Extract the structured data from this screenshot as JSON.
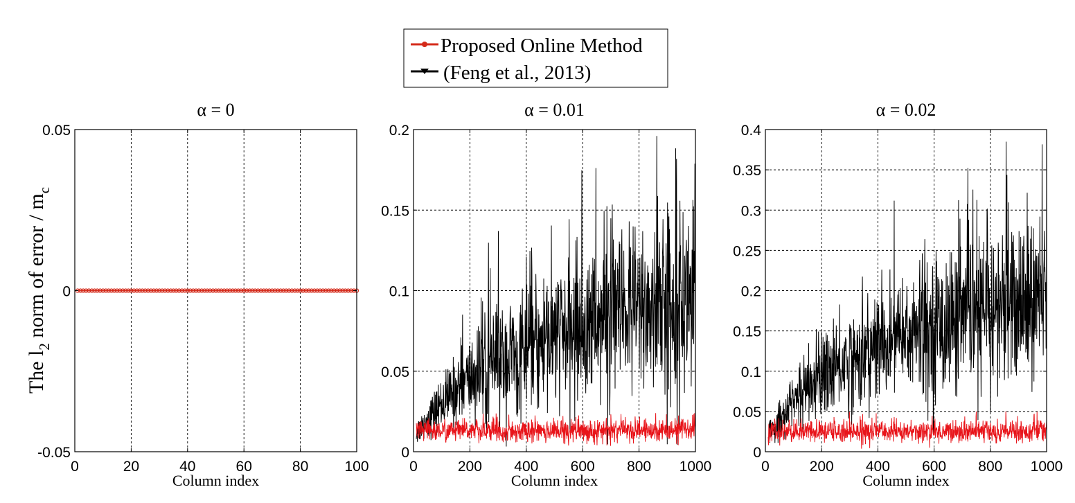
{
  "legend": {
    "entries": [
      {
        "label": "Proposed Online Method",
        "color": "#d42a1a"
      },
      {
        "label": "(Feng et al., 2013)",
        "color": "#000000"
      }
    ]
  },
  "y_axis_label": {
    "main": "The l",
    "sub1": "2",
    "mid": " norm of error / m",
    "sub2": "c"
  },
  "chart_data": [
    {
      "type": "line",
      "title": "α = 0",
      "xlabel": "Column index",
      "xlim": [
        0,
        100
      ],
      "ylim": [
        -0.05,
        0.05
      ],
      "xticks": [
        0,
        20,
        40,
        60,
        80,
        100
      ],
      "xtick_labels": [
        "0",
        "20",
        "40",
        "60",
        "80",
        "100"
      ],
      "yticks": [
        -0.05,
        0,
        0.05
      ],
      "ytick_labels": [
        "-0.05",
        "0",
        "0.05"
      ],
      "grid": true,
      "series": [
        {
          "name": "Proposed Online Method",
          "color": "#d42a1a",
          "marker": "circle",
          "description": "Constant zero for columns 1 to 100",
          "x_start": 1,
          "x_end": 100,
          "value": 0
        }
      ]
    },
    {
      "type": "line",
      "title": "α = 0.01",
      "xlabel": "Column index",
      "xlim": [
        0,
        1000
      ],
      "ylim": [
        0,
        0.2
      ],
      "xticks": [
        0,
        200,
        400,
        600,
        800,
        1000
      ],
      "xtick_labels": [
        "0",
        "200",
        "400",
        "600",
        "800",
        "1000"
      ],
      "yticks": [
        0,
        0.05,
        0.1,
        0.15,
        0.2
      ],
      "ytick_labels": [
        "0",
        "0.05",
        "0.1",
        "0.15",
        "0.2"
      ],
      "grid": true,
      "series": [
        {
          "name": "(Feng et al., 2013)",
          "color": "#000000",
          "trend_x": [
            10,
            100,
            200,
            300,
            400,
            500,
            600,
            700,
            800,
            900,
            1000
          ],
          "trend_y": [
            0.012,
            0.03,
            0.045,
            0.055,
            0.062,
            0.07,
            0.077,
            0.083,
            0.088,
            0.092,
            0.095
          ],
          "noise_sd": [
            0.004,
            0.008,
            0.014,
            0.018,
            0.02,
            0.022,
            0.024,
            0.026,
            0.028,
            0.03,
            0.03
          ],
          "peak_max": 0.196
        },
        {
          "name": "Proposed Online Method",
          "color": "#e8141a",
          "trend_x": [
            10,
            1000
          ],
          "trend_y": [
            0.013,
            0.013
          ],
          "noise_sd": [
            0.0035,
            0.0035
          ],
          "peak_max": 0.024
        }
      ]
    },
    {
      "type": "line",
      "title": "α = 0.02",
      "xlabel": "Column index",
      "xlim": [
        0,
        1000
      ],
      "ylim": [
        0,
        0.4
      ],
      "xticks": [
        0,
        200,
        400,
        600,
        800,
        1000
      ],
      "xtick_labels": [
        "0",
        "200",
        "400",
        "600",
        "800",
        "1000"
      ],
      "yticks": [
        0,
        0.05,
        0.1,
        0.15,
        0.2,
        0.25,
        0.3,
        0.35,
        0.4
      ],
      "ytick_labels": [
        "0",
        "0.05",
        "0.1",
        "0.15",
        "0.2",
        "0.25",
        "0.3",
        "0.35",
        "0.4"
      ],
      "grid": true,
      "series": [
        {
          "name": "(Feng et al., 2013)",
          "color": "#000000",
          "trend_x": [
            10,
            100,
            200,
            300,
            400,
            500,
            600,
            700,
            800,
            900,
            1000
          ],
          "trend_y": [
            0.02,
            0.065,
            0.095,
            0.115,
            0.13,
            0.145,
            0.155,
            0.165,
            0.175,
            0.185,
            0.19
          ],
          "noise_sd": [
            0.008,
            0.016,
            0.026,
            0.032,
            0.036,
            0.04,
            0.044,
            0.048,
            0.05,
            0.052,
            0.054
          ],
          "peak_max": 0.385
        },
        {
          "name": "Proposed Online Method",
          "color": "#e8141a",
          "trend_x": [
            10,
            1000
          ],
          "trend_y": [
            0.025,
            0.025
          ],
          "noise_sd": [
            0.007,
            0.007
          ],
          "peak_max": 0.05
        }
      ]
    }
  ]
}
